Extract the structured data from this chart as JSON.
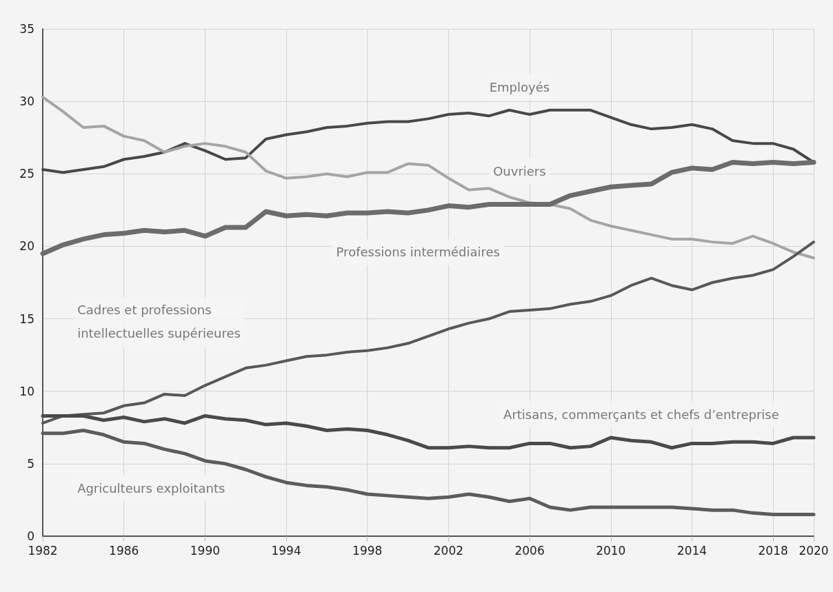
{
  "chart_data": {
    "type": "line",
    "x": [
      1982,
      1983,
      1984,
      1985,
      1986,
      1987,
      1988,
      1989,
      1990,
      1991,
      1992,
      1993,
      1994,
      1995,
      1996,
      1997,
      1998,
      1999,
      2000,
      2001,
      2002,
      2003,
      2004,
      2005,
      2006,
      2007,
      2008,
      2009,
      2010,
      2011,
      2012,
      2013,
      2014,
      2015,
      2016,
      2017,
      2018,
      2019,
      2020
    ],
    "series": [
      {
        "name": "Employés",
        "color": "#484848",
        "values": [
          25.3,
          25.1,
          25.3,
          25.5,
          26.0,
          26.2,
          26.5,
          27.1,
          26.6,
          26.0,
          26.1,
          27.4,
          27.7,
          27.9,
          28.2,
          28.3,
          28.5,
          28.6,
          28.6,
          28.8,
          29.1,
          29.2,
          29.0,
          29.4,
          29.1,
          29.4,
          29.4,
          29.4,
          28.9,
          28.4,
          28.1,
          28.2,
          28.4,
          28.1,
          27.3,
          27.1,
          27.1,
          26.7,
          25.8
        ]
      },
      {
        "name": "Ouvriers",
        "color": "#a5a5a5",
        "values": [
          30.3,
          29.3,
          28.2,
          28.3,
          27.6,
          27.3,
          26.5,
          26.9,
          27.1,
          26.9,
          26.5,
          25.2,
          24.7,
          24.8,
          25.0,
          24.8,
          25.1,
          25.1,
          25.7,
          25.6,
          24.7,
          23.9,
          24.0,
          23.4,
          23.0,
          22.9,
          22.6,
          21.8,
          21.4,
          21.1,
          20.8,
          20.5,
          20.5,
          20.3,
          20.2,
          20.7,
          20.2,
          19.6,
          19.2
        ]
      },
      {
        "name": "Professions intermédiaires",
        "color": "#6c6c6c",
        "values": [
          19.5,
          20.1,
          20.5,
          20.8,
          20.9,
          21.1,
          21.0,
          21.1,
          20.7,
          21.3,
          21.3,
          22.4,
          22.1,
          22.2,
          22.1,
          22.3,
          22.3,
          22.4,
          22.3,
          22.5,
          22.8,
          22.7,
          22.9,
          22.9,
          22.9,
          22.9,
          23.5,
          23.8,
          24.1,
          24.2,
          24.3,
          25.1,
          25.4,
          25.3,
          25.8,
          25.7,
          25.8,
          25.7,
          25.8
        ]
      },
      {
        "name": "Cadres et professions\nintellectuelles supérieures",
        "color": "#585858",
        "values": [
          7.8,
          8.3,
          8.4,
          8.5,
          9.0,
          9.2,
          9.8,
          9.7,
          10.4,
          11.0,
          11.6,
          11.8,
          12.1,
          12.4,
          12.5,
          12.7,
          12.8,
          13.0,
          13.3,
          13.8,
          14.3,
          14.7,
          15.0,
          15.5,
          15.6,
          15.7,
          16.0,
          16.2,
          16.6,
          17.3,
          17.8,
          17.3,
          17.0,
          17.5,
          17.8,
          18.0,
          18.4,
          19.3,
          20.3
        ]
      },
      {
        "name": "Artisans, commerçants et chefs d’entreprise",
        "color": "#4a4a4a",
        "values": [
          8.3,
          8.3,
          8.3,
          8.0,
          8.2,
          7.9,
          8.1,
          7.8,
          8.3,
          8.1,
          8.0,
          7.7,
          7.8,
          7.6,
          7.3,
          7.4,
          7.3,
          7.0,
          6.6,
          6.1,
          6.1,
          6.2,
          6.1,
          6.1,
          6.4,
          6.4,
          6.1,
          6.2,
          6.8,
          6.6,
          6.5,
          6.1,
          6.4,
          6.4,
          6.5,
          6.5,
          6.4,
          6.8,
          6.8
        ]
      },
      {
        "name": "Agriculteurs exploitants",
        "color": "#5c5c5c",
        "values": [
          7.1,
          7.1,
          7.3,
          7.0,
          6.5,
          6.4,
          6.0,
          5.7,
          5.2,
          5.0,
          4.6,
          4.1,
          3.7,
          3.5,
          3.4,
          3.2,
          2.9,
          2.8,
          2.7,
          2.6,
          2.7,
          2.9,
          2.7,
          2.4,
          2.6,
          2.0,
          1.8,
          2.0,
          2.0,
          2.0,
          2.0,
          2.0,
          1.9,
          1.8,
          1.8,
          1.6,
          1.5,
          1.5,
          1.5
        ]
      }
    ],
    "xlim": [
      1982,
      2020
    ],
    "xticks": [
      1982,
      1986,
      1990,
      1994,
      1998,
      2002,
      2006,
      2010,
      2014,
      2018,
      2020
    ],
    "ylim": [
      0,
      35
    ],
    "yticks": [
      0,
      5,
      10,
      15,
      20,
      25,
      30,
      35
    ],
    "grid": true,
    "legend": false,
    "marker": "none",
    "line_style": "solid"
  }
}
